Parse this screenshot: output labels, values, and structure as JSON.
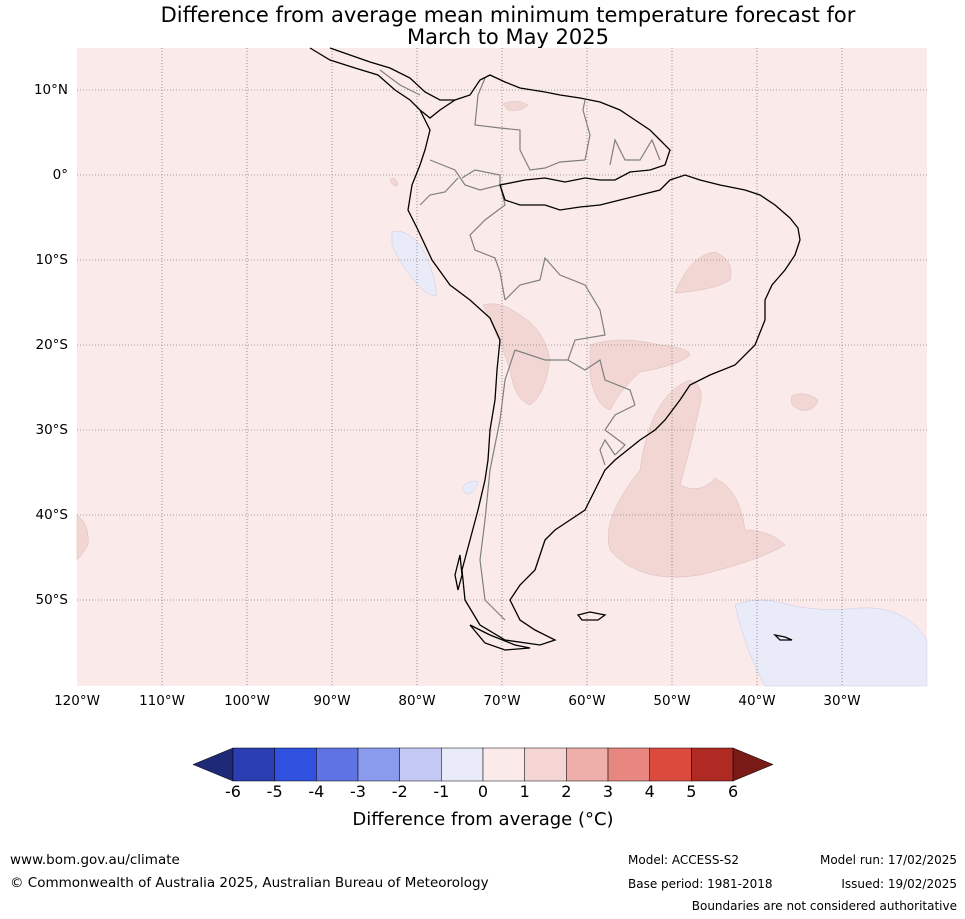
{
  "title_line1": "Difference from average mean minimum temperature forecast for",
  "title_line2": "March to May 2025",
  "lat_labels": [
    "10°N",
    "0°",
    "10°S",
    "20°S",
    "30°S",
    "40°S",
    "50°S"
  ],
  "lon_labels": [
    "120°W",
    "110°W",
    "100°W",
    "90°W",
    "80°W",
    "70°W",
    "60°W",
    "50°W",
    "40°W",
    "30°W"
  ],
  "colorbar": {
    "ticks": [
      "-6",
      "-5",
      "-4",
      "-3",
      "-2",
      "-1",
      "0",
      "1",
      "2",
      "3",
      "4",
      "5",
      "6"
    ],
    "colors": [
      "#1e2a78",
      "#2a3eb1",
      "#3050e0",
      "#5f74e4",
      "#8a9aec",
      "#c3c9f4",
      "#e9ebf9",
      "#fbeaea",
      "#f5d5d3",
      "#eeaeaa",
      "#e88680",
      "#dc4a3e",
      "#ae2a22",
      "#7a1a16"
    ],
    "label": "Difference from average (°C)"
  },
  "map_colors": {
    "warm_0_1": "#fbeaea",
    "warm_1_2": "#f2d6d4",
    "cool_m1_0": "#e9ebf9",
    "coast": "#000000",
    "border": "#808080"
  },
  "footer": {
    "site": "www.bom.gov.au/climate",
    "copyright": "© Commonwealth of Australia 2025, Australian Bureau of Meteorology",
    "model": "Model: ACCESS-S2",
    "base_period": "Base period: 1981-2018",
    "model_run": "Model run: 17/02/2025",
    "issued": "Issued: 19/02/2025",
    "boundaries": "Boundaries are not considered authoritative"
  }
}
